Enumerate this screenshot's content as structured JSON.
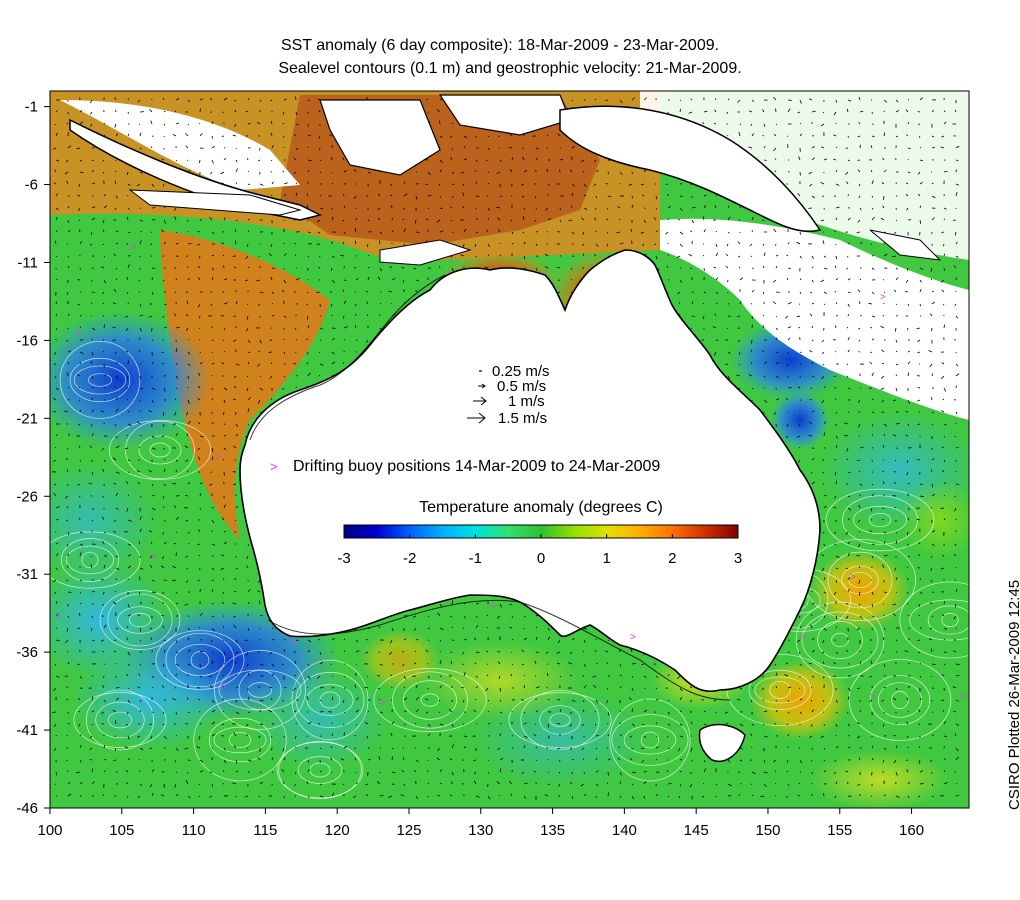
{
  "title_line1": "SST anomaly (6 day composite): 18-Mar-2009 - 23-Mar-2009.",
  "title_line2": "Sealevel contours (0.1 m) and geostrophic velocity: 21-Mar-2009.",
  "credit": "CSIRO Plotted 26-Mar-2009 12:45",
  "speed_legend": [
    "0.25 m/s",
    "0.5 m/s",
    "1 m/s",
    "1.5 m/s"
  ],
  "buoy_legend": "Drifting buoy positions 14-Mar-2009 to 24-Mar-2009",
  "colorbar_title": "Temperature anomaly (degrees C)",
  "colorbar_ticks": [
    "-3",
    "-2",
    "-1",
    "0",
    "1",
    "2",
    "3"
  ],
  "colorbar_range": [
    -3,
    3
  ],
  "colorbar_colors": [
    "#000080",
    "#0000d0",
    "#0060ff",
    "#00b0ff",
    "#00e0e0",
    "#30e070",
    "#30c030",
    "#90e000",
    "#e0e000",
    "#ffb000",
    "#ff7000",
    "#d03000",
    "#800000"
  ],
  "x_ticks": [
    "100",
    "105",
    "110",
    "115",
    "120",
    "125",
    "130",
    "135",
    "140",
    "145",
    "150",
    "155",
    "160"
  ],
  "y_ticks": [
    "-1",
    "-6",
    "-11",
    "-16",
    "-21",
    "-26",
    "-31",
    "-36",
    "-41",
    "-46"
  ],
  "x_range": [
    100,
    164
  ],
  "y_range": [
    -46,
    0
  ],
  "colors": {
    "land": "#ffffff",
    "coast": "#000000",
    "contour": "#ffffff",
    "buoy": "#e040e0"
  }
}
